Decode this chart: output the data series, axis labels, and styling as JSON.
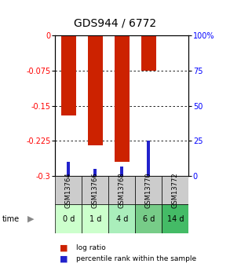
{
  "title": "GDS944 / 6772",
  "samples": [
    "GSM13764",
    "GSM13766",
    "GSM13768",
    "GSM13770",
    "GSM13772"
  ],
  "time_labels": [
    "0 d",
    "1 d",
    "4 d",
    "6 d",
    "14 d"
  ],
  "log_ratio": [
    -0.17,
    -0.235,
    -0.27,
    -0.075,
    0.0
  ],
  "percentile_rank": [
    10,
    5,
    7,
    25,
    0
  ],
  "ylim_left": [
    -0.3,
    0.0
  ],
  "ylim_right": [
    0,
    100
  ],
  "left_ticks": [
    0.0,
    -0.075,
    -0.15,
    -0.225,
    -0.3
  ],
  "right_ticks": [
    100,
    75,
    50,
    25,
    0
  ],
  "bar_color_red": "#cc2200",
  "bar_color_blue": "#2222cc",
  "bar_width": 0.55,
  "time_colors": [
    "#ccffcc",
    "#ccffcc",
    "#aaeebb",
    "#77cc88",
    "#44bb66"
  ],
  "gsm_bg_color": "#cccccc",
  "title_fontsize": 10,
  "tick_fontsize": 7,
  "label_fontsize": 7
}
